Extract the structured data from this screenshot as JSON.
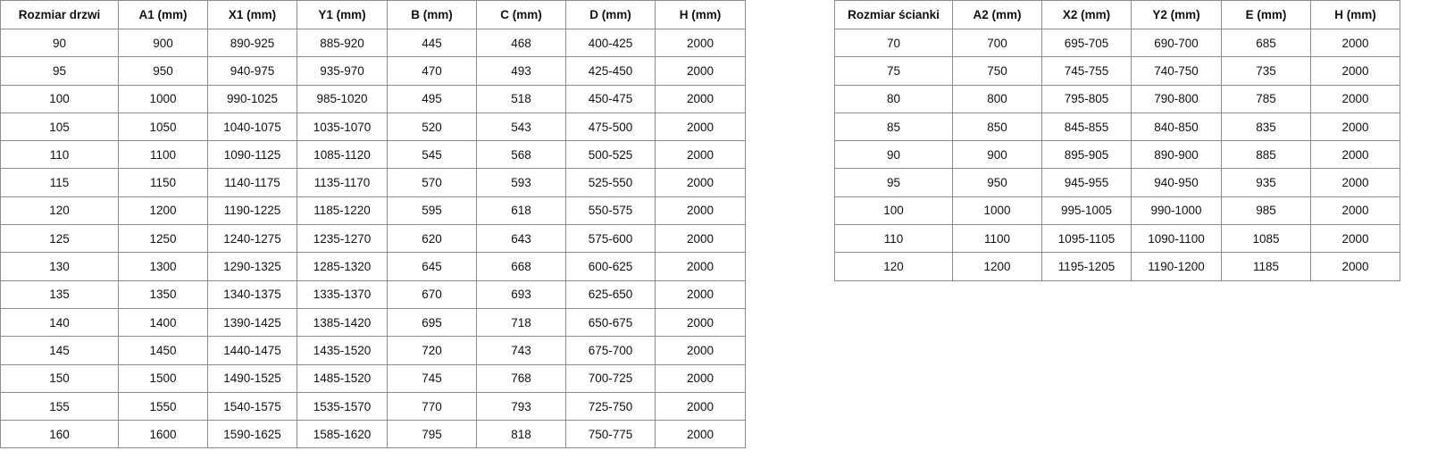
{
  "doors_table": {
    "headers": [
      "Rozmiar drzwi",
      "A1 (mm)",
      "X1 (mm)",
      "Y1 (mm)",
      "B (mm)",
      "C (mm)",
      "D (mm)",
      "H (mm)"
    ],
    "rows": [
      [
        "90",
        "900",
        "890-925",
        "885-920",
        "445",
        "468",
        "400-425",
        "2000"
      ],
      [
        "95",
        "950",
        "940-975",
        "935-970",
        "470",
        "493",
        "425-450",
        "2000"
      ],
      [
        "100",
        "1000",
        "990-1025",
        "985-1020",
        "495",
        "518",
        "450-475",
        "2000"
      ],
      [
        "105",
        "1050",
        "1040-1075",
        "1035-1070",
        "520",
        "543",
        "475-500",
        "2000"
      ],
      [
        "110",
        "1100",
        "1090-1125",
        "1085-1120",
        "545",
        "568",
        "500-525",
        "2000"
      ],
      [
        "115",
        "1150",
        "1140-1175",
        "1135-1170",
        "570",
        "593",
        "525-550",
        "2000"
      ],
      [
        "120",
        "1200",
        "1190-1225",
        "1185-1220",
        "595",
        "618",
        "550-575",
        "2000"
      ],
      [
        "125",
        "1250",
        "1240-1275",
        "1235-1270",
        "620",
        "643",
        "575-600",
        "2000"
      ],
      [
        "130",
        "1300",
        "1290-1325",
        "1285-1320",
        "645",
        "668",
        "600-625",
        "2000"
      ],
      [
        "135",
        "1350",
        "1340-1375",
        "1335-1370",
        "670",
        "693",
        "625-650",
        "2000"
      ],
      [
        "140",
        "1400",
        "1390-1425",
        "1385-1420",
        "695",
        "718",
        "650-675",
        "2000"
      ],
      [
        "145",
        "1450",
        "1440-1475",
        "1435-1520",
        "720",
        "743",
        "675-700",
        "2000"
      ],
      [
        "150",
        "1500",
        "1490-1525",
        "1485-1520",
        "745",
        "768",
        "700-725",
        "2000"
      ],
      [
        "155",
        "1550",
        "1540-1575",
        "1535-1570",
        "770",
        "793",
        "725-750",
        "2000"
      ],
      [
        "160",
        "1600",
        "1590-1625",
        "1585-1620",
        "795",
        "818",
        "750-775",
        "2000"
      ]
    ]
  },
  "walls_table": {
    "headers": [
      "Rozmiar ścianki",
      "A2 (mm)",
      "X2 (mm)",
      "Y2 (mm)",
      "E (mm)",
      "H (mm)"
    ],
    "rows": [
      [
        "70",
        "700",
        "695-705",
        "690-700",
        "685",
        "2000"
      ],
      [
        "75",
        "750",
        "745-755",
        "740-750",
        "735",
        "2000"
      ],
      [
        "80",
        "800",
        "795-805",
        "790-800",
        "785",
        "2000"
      ],
      [
        "85",
        "850",
        "845-855",
        "840-850",
        "835",
        "2000"
      ],
      [
        "90",
        "900",
        "895-905",
        "890-900",
        "885",
        "2000"
      ],
      [
        "95",
        "950",
        "945-955",
        "940-950",
        "935",
        "2000"
      ],
      [
        "100",
        "1000",
        "995-1005",
        "990-1000",
        "985",
        "2000"
      ],
      [
        "110",
        "1100",
        "1095-1105",
        "1090-1100",
        "1085",
        "2000"
      ],
      [
        "120",
        "1200",
        "1195-1205",
        "1190-1200",
        "1185",
        "2000"
      ]
    ]
  }
}
